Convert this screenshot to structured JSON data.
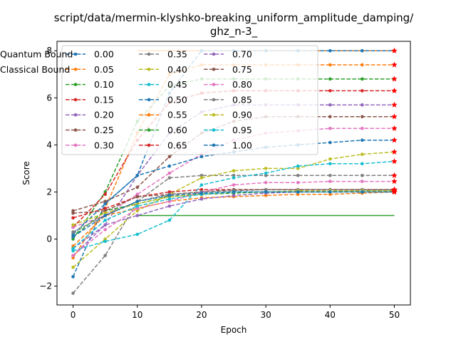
{
  "chart_data": {
    "type": "line",
    "title_line1": "script/data/mermin-klyshko-breaking_uniform_amplitude_damping/",
    "title_line2": "ghz_n-3_",
    "xlabel": "Epoch",
    "ylabel": "Score",
    "xlim": [
      -2.5,
      52.5
    ],
    "ylim": [
      -2.8,
      8.4
    ],
    "x_ticks": [
      0,
      10,
      20,
      30,
      40,
      50
    ],
    "y_ticks": [
      -2,
      0,
      2,
      4,
      6,
      8
    ],
    "legend_location": "upper left",
    "grid": false,
    "x": [
      0,
      5,
      10,
      15,
      20,
      25,
      30,
      35,
      40,
      45,
      50
    ],
    "series": [
      {
        "name": "0.00",
        "color": "#1f77b4",
        "values": [
          -1.6,
          1.5,
          2.7,
          6.2,
          8.0,
          8.0,
          8.0,
          8.0,
          8.0,
          8.0,
          8.0
        ]
      },
      {
        "name": "0.05",
        "color": "#ff7f0e",
        "values": [
          -0.8,
          1.3,
          4.5,
          7.0,
          7.4,
          7.4,
          7.4,
          7.4,
          7.4,
          7.4,
          7.4
        ]
      },
      {
        "name": "0.10",
        "color": "#2ca02c",
        "values": [
          0.0,
          2.0,
          5.0,
          6.5,
          6.8,
          6.8,
          6.8,
          6.8,
          6.8,
          6.8,
          6.8
        ]
      },
      {
        "name": "0.15",
        "color": "#d62728",
        "values": [
          0.5,
          1.9,
          4.2,
          5.8,
          6.2,
          6.3,
          6.3,
          6.3,
          6.3,
          6.3,
          6.3
        ]
      },
      {
        "name": "0.20",
        "color": "#9467bd",
        "values": [
          -0.4,
          0.6,
          2.7,
          4.5,
          5.4,
          5.7,
          5.7,
          5.7,
          5.7,
          5.7,
          5.7
        ]
      },
      {
        "name": "0.25",
        "color": "#8c564b",
        "values": [
          1.2,
          1.6,
          2.2,
          3.5,
          4.5,
          5.0,
          5.2,
          5.2,
          5.2,
          5.2,
          5.2
        ]
      },
      {
        "name": "0.30",
        "color": "#e377c2",
        "values": [
          0.5,
          1.0,
          1.9,
          2.8,
          3.6,
          4.2,
          4.5,
          4.6,
          4.7,
          4.7,
          4.7
        ]
      },
      {
        "name": "0.35",
        "color": "#7f7f7f",
        "values": [
          -2.3,
          -0.7,
          1.6,
          2.6,
          2.7,
          2.7,
          2.7,
          2.7,
          2.7,
          2.7,
          2.7
        ]
      },
      {
        "name": "0.40",
        "color": "#bcbd22",
        "values": [
          -1.2,
          0.0,
          1.2,
          1.9,
          2.6,
          2.9,
          3.0,
          3.0,
          3.4,
          3.6,
          3.7
        ]
      },
      {
        "name": "0.45",
        "color": "#17becf",
        "values": [
          -0.5,
          -0.1,
          0.2,
          0.8,
          2.3,
          2.6,
          2.8,
          3.1,
          3.2,
          3.2,
          3.3
        ]
      },
      {
        "name": "0.50",
        "color": "#1f77b4",
        "values": [
          0.2,
          1.5,
          2.7,
          3.1,
          3.5,
          3.7,
          3.9,
          4.0,
          4.1,
          4.2,
          4.2
        ]
      },
      {
        "name": "0.55",
        "color": "#ff7f0e",
        "values": [
          -0.3,
          1.0,
          1.3,
          1.6,
          1.75,
          1.8,
          1.85,
          1.9,
          1.9,
          1.95,
          2.0
        ]
      },
      {
        "name": "0.60",
        "color": "#2ca02c",
        "values": [
          0.1,
          1.2,
          1.5,
          1.8,
          1.9,
          1.95,
          2.0,
          2.0,
          2.0,
          2.05,
          2.05
        ]
      },
      {
        "name": "0.65",
        "color": "#d62728",
        "values": [
          0.9,
          1.3,
          1.8,
          2.0,
          2.1,
          2.1,
          2.1,
          2.1,
          2.1,
          2.1,
          2.1
        ]
      },
      {
        "name": "0.70",
        "color": "#9467bd",
        "values": [
          -0.7,
          0.6,
          1.0,
          1.4,
          1.7,
          1.85,
          1.95,
          2.0,
          2.0,
          2.0,
          2.0
        ]
      },
      {
        "name": "0.75",
        "color": "#8c564b",
        "values": [
          1.1,
          1.2,
          1.8,
          1.9,
          2.0,
          2.1,
          2.1,
          2.1,
          2.1,
          2.1,
          2.1
        ]
      },
      {
        "name": "0.80",
        "color": "#e377c2",
        "values": [
          -0.7,
          0.4,
          1.3,
          1.6,
          2.0,
          2.3,
          2.4,
          2.4,
          2.45,
          2.45,
          2.45
        ]
      },
      {
        "name": "0.85",
        "color": "#7f7f7f",
        "values": [
          0.3,
          1.0,
          1.6,
          1.9,
          2.0,
          2.05,
          2.1,
          2.1,
          2.1,
          2.1,
          2.1
        ]
      },
      {
        "name": "0.90",
        "color": "#bcbd22",
        "values": [
          0.6,
          1.1,
          1.5,
          1.8,
          1.9,
          2.0,
          2.0,
          2.05,
          2.05,
          2.05,
          2.05
        ]
      },
      {
        "name": "0.95",
        "color": "#17becf",
        "values": [
          -0.4,
          0.8,
          1.4,
          1.7,
          1.9,
          2.0,
          2.0,
          2.0,
          2.0,
          2.0,
          2.0
        ]
      },
      {
        "name": "1.00",
        "color": "#1f77b4",
        "values": [
          0.1,
          1.0,
          1.6,
          1.85,
          1.95,
          2.0,
          2.0,
          2.0,
          2.0,
          2.0,
          2.0
        ]
      }
    ],
    "bounds": [
      {
        "name": "Quantum Bound",
        "color": "#ff7f0e",
        "x": [
          10,
          50
        ],
        "values": [
          8.0,
          8.0
        ]
      },
      {
        "name": "Classical Bound",
        "color": "#2ca02c",
        "x": [
          10,
          50
        ],
        "values": [
          1.0,
          1.0
        ]
      }
    ],
    "end_marker_color": "#ff0000"
  }
}
